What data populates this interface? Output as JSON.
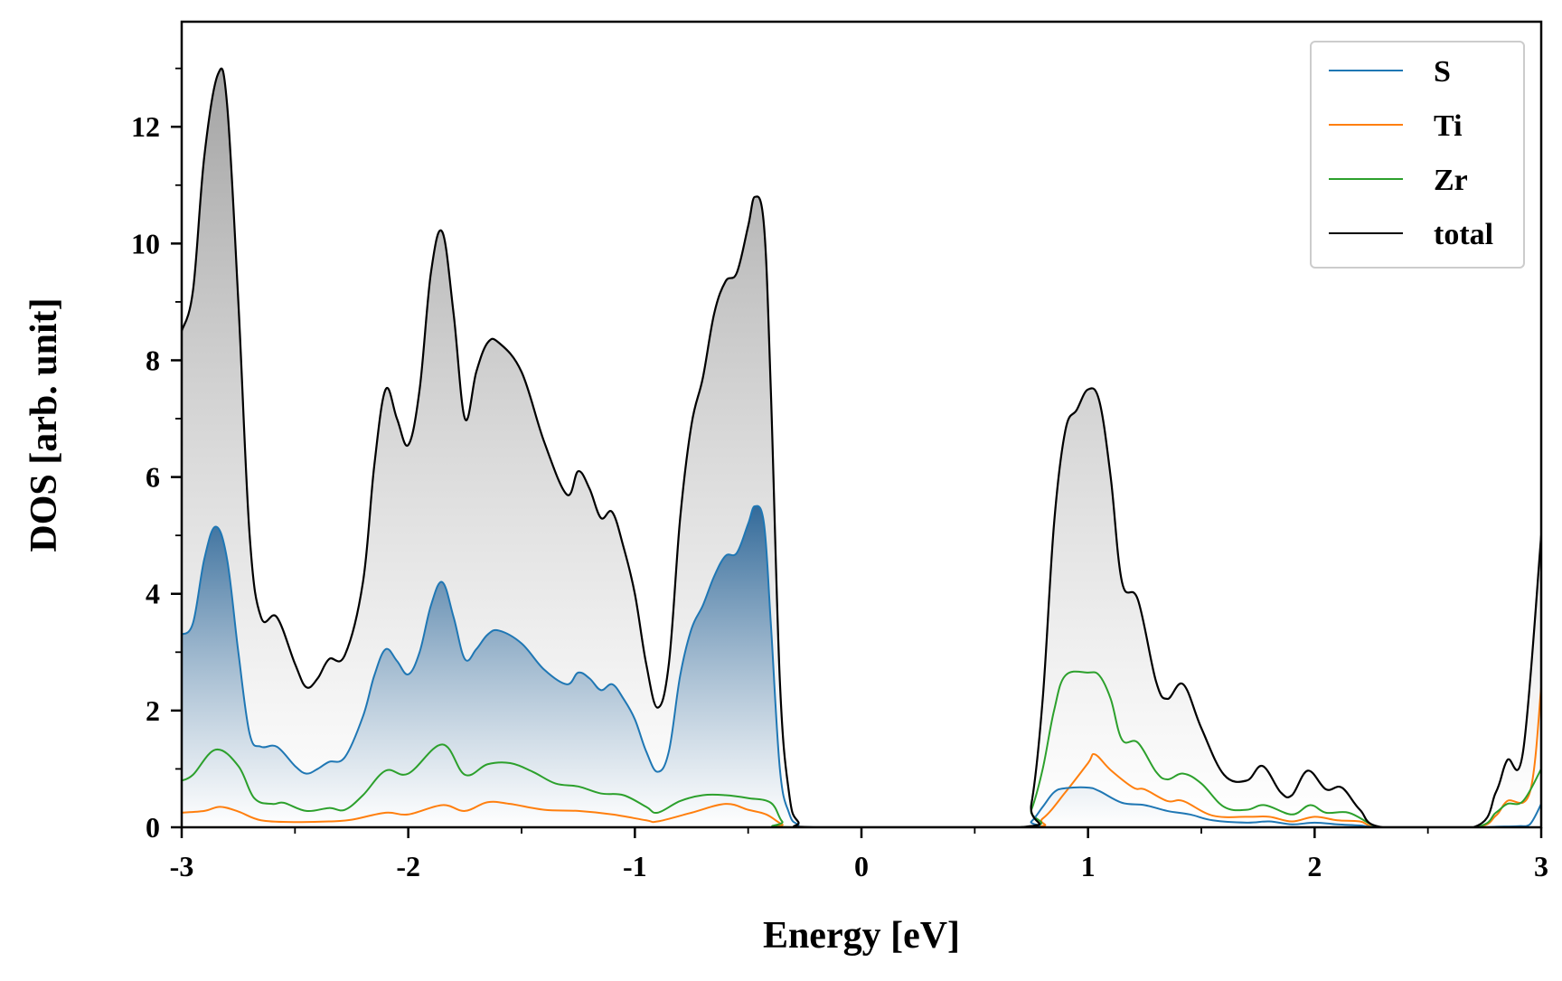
{
  "chart_data": {
    "type": "area",
    "title": "",
    "xlabel": "Energy [eV]",
    "ylabel": "DOS [arb. unit]",
    "xlim": [
      -3,
      3
    ],
    "ylim": [
      0,
      13.8
    ],
    "x_ticks": [
      -3,
      -2,
      -1,
      0,
      1,
      2,
      3
    ],
    "x_tick_labels": [
      "-3",
      "-2",
      "-1",
      "0",
      "1",
      "2",
      "3"
    ],
    "y_ticks": [
      0,
      2,
      4,
      6,
      8,
      10,
      12
    ],
    "y_tick_labels": [
      "0",
      "2",
      "4",
      "6",
      "8",
      "10",
      "12"
    ],
    "grid": false,
    "legend_position": "top-right",
    "series": [
      {
        "name": "S",
        "color": "#1f77b4",
        "fill": "blue-gradient",
        "points": [
          [
            -3.0,
            3.3
          ],
          [
            -2.95,
            3.5
          ],
          [
            -2.9,
            4.6
          ],
          [
            -2.85,
            5.15
          ],
          [
            -2.8,
            4.6
          ],
          [
            -2.75,
            3.0
          ],
          [
            -2.7,
            1.6
          ],
          [
            -2.65,
            1.38
          ],
          [
            -2.58,
            1.38
          ],
          [
            -2.5,
            1.05
          ],
          [
            -2.45,
            0.92
          ],
          [
            -2.4,
            1.0
          ],
          [
            -2.35,
            1.12
          ],
          [
            -2.28,
            1.2
          ],
          [
            -2.2,
            1.9
          ],
          [
            -2.15,
            2.6
          ],
          [
            -2.1,
            3.05
          ],
          [
            -2.05,
            2.85
          ],
          [
            -2.0,
            2.62
          ],
          [
            -1.95,
            3.0
          ],
          [
            -1.9,
            3.8
          ],
          [
            -1.85,
            4.2
          ],
          [
            -1.8,
            3.6
          ],
          [
            -1.75,
            2.88
          ],
          [
            -1.7,
            3.05
          ],
          [
            -1.65,
            3.3
          ],
          [
            -1.6,
            3.37
          ],
          [
            -1.5,
            3.15
          ],
          [
            -1.4,
            2.7
          ],
          [
            -1.3,
            2.45
          ],
          [
            -1.25,
            2.65
          ],
          [
            -1.2,
            2.55
          ],
          [
            -1.15,
            2.35
          ],
          [
            -1.1,
            2.45
          ],
          [
            -1.05,
            2.2
          ],
          [
            -1.0,
            1.85
          ],
          [
            -0.95,
            1.3
          ],
          [
            -0.9,
            0.95
          ],
          [
            -0.85,
            1.3
          ],
          [
            -0.8,
            2.6
          ],
          [
            -0.75,
            3.4
          ],
          [
            -0.7,
            3.8
          ],
          [
            -0.65,
            4.3
          ],
          [
            -0.6,
            4.65
          ],
          [
            -0.55,
            4.7
          ],
          [
            -0.5,
            5.2
          ],
          [
            -0.47,
            5.5
          ],
          [
            -0.43,
            5.2
          ],
          [
            -0.4,
            3.5
          ],
          [
            -0.36,
            1.0
          ],
          [
            -0.32,
            0.25
          ],
          [
            -0.28,
            0.05
          ],
          [
            -0.2,
            0.0
          ],
          [
            0.7,
            0.0
          ],
          [
            0.75,
            0.1
          ],
          [
            0.8,
            0.35
          ],
          [
            0.85,
            0.6
          ],
          [
            0.9,
            0.67
          ],
          [
            1.0,
            0.68
          ],
          [
            1.05,
            0.62
          ],
          [
            1.15,
            0.42
          ],
          [
            1.25,
            0.38
          ],
          [
            1.35,
            0.28
          ],
          [
            1.45,
            0.22
          ],
          [
            1.55,
            0.12
          ],
          [
            1.7,
            0.08
          ],
          [
            1.8,
            0.1
          ],
          [
            1.9,
            0.05
          ],
          [
            2.0,
            0.08
          ],
          [
            2.1,
            0.05
          ],
          [
            2.2,
            0.03
          ],
          [
            2.3,
            0.0
          ],
          [
            2.7,
            0.0
          ],
          [
            2.8,
            0.01
          ],
          [
            2.9,
            0.02
          ],
          [
            2.95,
            0.05
          ],
          [
            3.0,
            0.4
          ]
        ]
      },
      {
        "name": "Ti",
        "color": "#ff7f0e",
        "fill": "none",
        "points": [
          [
            -3.0,
            0.25
          ],
          [
            -2.9,
            0.28
          ],
          [
            -2.83,
            0.35
          ],
          [
            -2.75,
            0.27
          ],
          [
            -2.65,
            0.12
          ],
          [
            -2.5,
            0.09
          ],
          [
            -2.35,
            0.1
          ],
          [
            -2.25,
            0.13
          ],
          [
            -2.1,
            0.25
          ],
          [
            -2.0,
            0.22
          ],
          [
            -1.85,
            0.38
          ],
          [
            -1.75,
            0.28
          ],
          [
            -1.65,
            0.43
          ],
          [
            -1.55,
            0.4
          ],
          [
            -1.4,
            0.3
          ],
          [
            -1.25,
            0.28
          ],
          [
            -1.1,
            0.22
          ],
          [
            -0.95,
            0.12
          ],
          [
            -0.9,
            0.1
          ],
          [
            -0.75,
            0.25
          ],
          [
            -0.6,
            0.4
          ],
          [
            -0.5,
            0.3
          ],
          [
            -0.42,
            0.22
          ],
          [
            -0.35,
            0.05
          ],
          [
            -0.3,
            0.0
          ],
          [
            0.7,
            0.0
          ],
          [
            0.8,
            0.15
          ],
          [
            0.9,
            0.6
          ],
          [
            1.0,
            1.1
          ],
          [
            1.03,
            1.25
          ],
          [
            1.1,
            0.98
          ],
          [
            1.2,
            0.68
          ],
          [
            1.25,
            0.65
          ],
          [
            1.35,
            0.45
          ],
          [
            1.42,
            0.45
          ],
          [
            1.55,
            0.2
          ],
          [
            1.7,
            0.18
          ],
          [
            1.8,
            0.18
          ],
          [
            1.9,
            0.1
          ],
          [
            2.0,
            0.18
          ],
          [
            2.1,
            0.12
          ],
          [
            2.2,
            0.1
          ],
          [
            2.3,
            0.0
          ],
          [
            2.7,
            0.0
          ],
          [
            2.8,
            0.2
          ],
          [
            2.85,
            0.45
          ],
          [
            2.95,
            0.6
          ],
          [
            3.0,
            2.4
          ]
        ]
      },
      {
        "name": "Zr",
        "color": "#2ca02c",
        "fill": "none",
        "points": [
          [
            -3.0,
            0.8
          ],
          [
            -2.95,
            0.9
          ],
          [
            -2.85,
            1.33
          ],
          [
            -2.75,
            1.05
          ],
          [
            -2.68,
            0.5
          ],
          [
            -2.6,
            0.4
          ],
          [
            -2.55,
            0.42
          ],
          [
            -2.45,
            0.28
          ],
          [
            -2.35,
            0.33
          ],
          [
            -2.28,
            0.3
          ],
          [
            -2.2,
            0.55
          ],
          [
            -2.1,
            0.97
          ],
          [
            -2.0,
            0.92
          ],
          [
            -1.85,
            1.42
          ],
          [
            -1.75,
            0.9
          ],
          [
            -1.65,
            1.08
          ],
          [
            -1.55,
            1.1
          ],
          [
            -1.45,
            0.95
          ],
          [
            -1.35,
            0.75
          ],
          [
            -1.25,
            0.7
          ],
          [
            -1.15,
            0.58
          ],
          [
            -1.05,
            0.55
          ],
          [
            -0.95,
            0.35
          ],
          [
            -0.9,
            0.25
          ],
          [
            -0.8,
            0.45
          ],
          [
            -0.7,
            0.55
          ],
          [
            -0.6,
            0.55
          ],
          [
            -0.5,
            0.5
          ],
          [
            -0.4,
            0.42
          ],
          [
            -0.35,
            0.1
          ],
          [
            -0.3,
            0.0
          ],
          [
            0.7,
            0.0
          ],
          [
            0.75,
            0.3
          ],
          [
            0.8,
            1.0
          ],
          [
            0.85,
            2.0
          ],
          [
            0.9,
            2.6
          ],
          [
            1.0,
            2.65
          ],
          [
            1.05,
            2.6
          ],
          [
            1.1,
            2.2
          ],
          [
            1.15,
            1.5
          ],
          [
            1.22,
            1.45
          ],
          [
            1.3,
            0.95
          ],
          [
            1.35,
            0.82
          ],
          [
            1.42,
            0.92
          ],
          [
            1.5,
            0.75
          ],
          [
            1.6,
            0.35
          ],
          [
            1.7,
            0.3
          ],
          [
            1.78,
            0.38
          ],
          [
            1.9,
            0.22
          ],
          [
            1.98,
            0.38
          ],
          [
            2.05,
            0.25
          ],
          [
            2.15,
            0.25
          ],
          [
            2.25,
            0.05
          ],
          [
            2.3,
            0.0
          ],
          [
            2.7,
            0.0
          ],
          [
            2.8,
            0.25
          ],
          [
            2.85,
            0.4
          ],
          [
            2.92,
            0.45
          ],
          [
            3.0,
            1.0
          ]
        ]
      },
      {
        "name": "total",
        "color": "#000000",
        "fill": "gray-gradient",
        "points": [
          [
            -3.0,
            8.5
          ],
          [
            -2.95,
            9.2
          ],
          [
            -2.9,
            11.5
          ],
          [
            -2.84,
            12.9
          ],
          [
            -2.8,
            12.4
          ],
          [
            -2.75,
            9.0
          ],
          [
            -2.7,
            5.0
          ],
          [
            -2.65,
            3.6
          ],
          [
            -2.58,
            3.6
          ],
          [
            -2.5,
            2.8
          ],
          [
            -2.45,
            2.4
          ],
          [
            -2.4,
            2.55
          ],
          [
            -2.35,
            2.88
          ],
          [
            -2.28,
            2.95
          ],
          [
            -2.2,
            4.2
          ],
          [
            -2.15,
            6.2
          ],
          [
            -2.1,
            7.5
          ],
          [
            -2.05,
            7.0
          ],
          [
            -2.0,
            6.55
          ],
          [
            -1.95,
            7.5
          ],
          [
            -1.9,
            9.5
          ],
          [
            -1.85,
            10.2
          ],
          [
            -1.8,
            8.8
          ],
          [
            -1.75,
            7.0
          ],
          [
            -1.7,
            7.8
          ],
          [
            -1.65,
            8.3
          ],
          [
            -1.6,
            8.3
          ],
          [
            -1.5,
            7.8
          ],
          [
            -1.4,
            6.6
          ],
          [
            -1.3,
            5.7
          ],
          [
            -1.25,
            6.1
          ],
          [
            -1.2,
            5.8
          ],
          [
            -1.15,
            5.3
          ],
          [
            -1.1,
            5.4
          ],
          [
            -1.05,
            4.8
          ],
          [
            -1.0,
            4.0
          ],
          [
            -0.95,
            2.8
          ],
          [
            -0.9,
            2.05
          ],
          [
            -0.85,
            2.8
          ],
          [
            -0.8,
            5.3
          ],
          [
            -0.75,
            6.9
          ],
          [
            -0.7,
            7.7
          ],
          [
            -0.65,
            8.8
          ],
          [
            -0.6,
            9.35
          ],
          [
            -0.55,
            9.5
          ],
          [
            -0.5,
            10.3
          ],
          [
            -0.47,
            10.8
          ],
          [
            -0.43,
            10.3
          ],
          [
            -0.4,
            7.5
          ],
          [
            -0.36,
            2.5
          ],
          [
            -0.32,
            0.6
          ],
          [
            -0.28,
            0.1
          ],
          [
            -0.2,
            0.0
          ],
          [
            0.7,
            0.0
          ],
          [
            0.75,
            0.4
          ],
          [
            0.8,
            2.2
          ],
          [
            0.85,
            5.2
          ],
          [
            0.9,
            6.8
          ],
          [
            0.95,
            7.15
          ],
          [
            1.0,
            7.5
          ],
          [
            1.05,
            7.3
          ],
          [
            1.1,
            6.0
          ],
          [
            1.15,
            4.2
          ],
          [
            1.22,
            3.9
          ],
          [
            1.3,
            2.5
          ],
          [
            1.35,
            2.2
          ],
          [
            1.42,
            2.45
          ],
          [
            1.5,
            1.7
          ],
          [
            1.6,
            0.9
          ],
          [
            1.7,
            0.8
          ],
          [
            1.77,
            1.05
          ],
          [
            1.85,
            0.6
          ],
          [
            1.9,
            0.55
          ],
          [
            1.97,
            0.97
          ],
          [
            2.05,
            0.65
          ],
          [
            2.12,
            0.68
          ],
          [
            2.2,
            0.3
          ],
          [
            2.3,
            0.0
          ],
          [
            2.7,
            0.0
          ],
          [
            2.8,
            0.6
          ],
          [
            2.85,
            1.15
          ],
          [
            2.92,
            1.3
          ],
          [
            3.0,
            5.0
          ]
        ]
      }
    ],
    "legend": {
      "entries": [
        {
          "label": "S",
          "color": "#1f77b4"
        },
        {
          "label": "Ti",
          "color": "#ff7f0e"
        },
        {
          "label": "Zr",
          "color": "#2ca02c"
        },
        {
          "label": "total",
          "color": "#000000"
        }
      ]
    }
  }
}
